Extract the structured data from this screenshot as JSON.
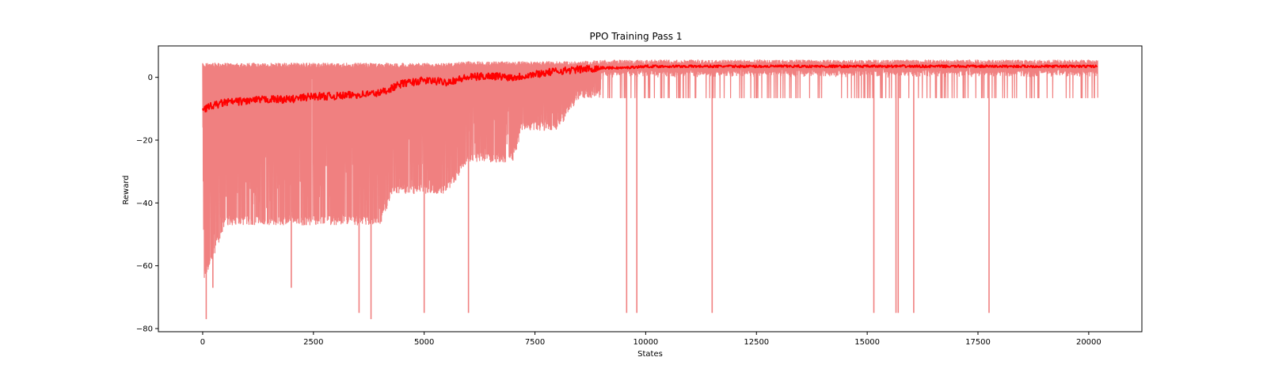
{
  "chart_data": {
    "type": "line",
    "title": "PPO Training Pass 1",
    "xlabel": "States",
    "ylabel": "Reward",
    "xlim": [
      -1000,
      21200
    ],
    "ylim": [
      -81,
      10
    ],
    "xticks": [
      0,
      2500,
      5000,
      7500,
      10000,
      12500,
      15000,
      17500,
      20000
    ],
    "yticks": [
      -80,
      -60,
      -40,
      -20,
      0
    ],
    "grid": false,
    "legend": "none",
    "colors": {
      "raw": "#f08080",
      "smoothed": "#ff0000"
    },
    "x_range": [
      0,
      20200
    ],
    "series": [
      {
        "kind": "raw_rewards_envelope",
        "x": [
          0,
          250,
          500,
          1000,
          1500,
          2000,
          2500,
          3000,
          3500,
          4000,
          4300,
          4500,
          5000,
          5500,
          6000,
          6500,
          7000,
          7200,
          7500,
          7800,
          8000,
          8500,
          9000,
          10000,
          12000,
          15000,
          17500,
          20200
        ],
        "upper": [
          4.5,
          4.5,
          4.5,
          4.5,
          4.5,
          4.5,
          4.5,
          4.5,
          4.5,
          4.5,
          4.5,
          4.5,
          4.5,
          4.5,
          5,
          5,
          5,
          5,
          5,
          5,
          5,
          5,
          5.5,
          5.5,
          5.5,
          5.5,
          5.5,
          5.5
        ],
        "dense_lower": [
          -66,
          -57,
          -47,
          -47,
          -47,
          -47,
          -47,
          -47,
          -47,
          -47,
          -37,
          -37,
          -37,
          -37,
          -27,
          -27,
          -27,
          -17,
          -17,
          -17,
          -17,
          -6.5,
          -6.5,
          -6.5,
          -6.5,
          -6.5,
          -6.5,
          -6.5
        ]
      },
      {
        "kind": "raw_rewards_spikes",
        "x": [
          80,
          230,
          2000,
          3530,
          3800,
          5000,
          6000,
          9570,
          9800,
          11500,
          15150,
          15650,
          15700,
          16050,
          17750
        ],
        "y": [
          -77,
          -67,
          -67,
          -75,
          -77,
          -75,
          -75,
          -75,
          -75,
          -75,
          -75,
          -75,
          -75,
          -75,
          -75
        ]
      },
      {
        "kind": "smoothed_mean",
        "x": [
          0,
          500,
          1000,
          1500,
          2000,
          2500,
          3000,
          3500,
          4000,
          4500,
          5000,
          5500,
          6000,
          6500,
          7000,
          7500,
          8000,
          8500,
          9000,
          9500,
          10000,
          11000,
          12000,
          13000,
          14000,
          15000,
          16000,
          17000,
          18000,
          19000,
          20200
        ],
        "y": [
          -10,
          -8,
          -7.5,
          -7,
          -7,
          -6,
          -6,
          -5.5,
          -5,
          -2,
          -1,
          -1.5,
          0,
          0.5,
          0,
          1,
          2,
          2.5,
          3,
          3,
          3.5,
          3.5,
          3.5,
          3.5,
          3.5,
          3.5,
          3.5,
          3.5,
          3.5,
          3.5,
          3.5
        ]
      }
    ]
  }
}
